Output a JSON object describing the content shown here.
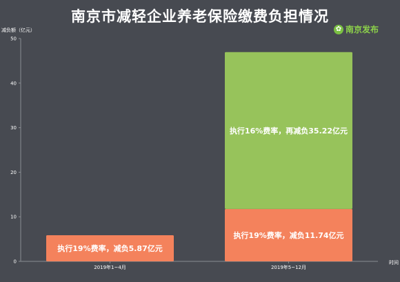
{
  "title": "南京市减轻企业养老保险缴费负担情况",
  "logo": {
    "text": "南京发布",
    "icon": "logo-icon"
  },
  "colors": {
    "background": "#474a51",
    "rate19": "#f4825c",
    "rate16": "#97c35b",
    "axis": "#8a8d93"
  },
  "chart_data": {
    "type": "bar",
    "stacked": true,
    "categories": [
      "2019年1~4月",
      "2019年5~12月"
    ],
    "series": [
      {
        "name": "执行19%费率",
        "color": "#f4825c",
        "values": [
          5.87,
          11.74
        ],
        "labels": [
          "执行19%费率，减负5.87亿元",
          "执行19%费率，减负11.74亿元"
        ]
      },
      {
        "name": "执行16%费率",
        "color": "#97c35b",
        "values": [
          0,
          35.22
        ],
        "labels": [
          "",
          "执行16%费率，再减负35.22亿元"
        ]
      }
    ],
    "ylabel": "减负额（亿元）",
    "xlabel": "时间",
    "ylim": [
      0,
      50
    ],
    "yticks": [
      0,
      10,
      20,
      30,
      40,
      50
    ],
    "grid": false
  }
}
